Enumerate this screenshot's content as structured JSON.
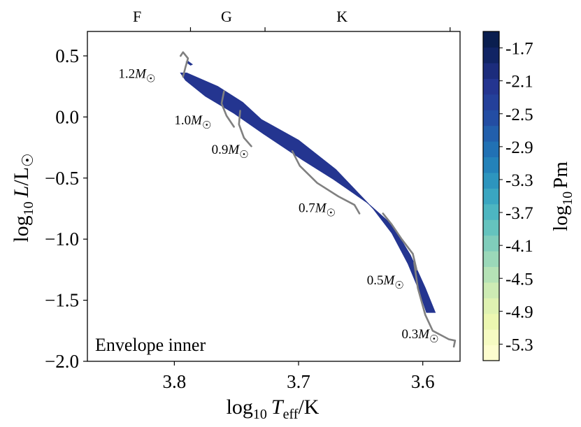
{
  "chart_data": {
    "type": "heatmap",
    "panel_label": "Envelope inner",
    "xlabel": {
      "base": "log",
      "sub": "10",
      "var": "T",
      "varsub": "eff",
      "unit": "/K"
    },
    "ylabel": {
      "base": "log",
      "sub": "10",
      "var": "L",
      "unit": "/L",
      "sun": "☉"
    },
    "x_axis": {
      "range": [
        3.87,
        3.57
      ],
      "inverted": true,
      "ticks": [
        3.8,
        3.7,
        3.6
      ],
      "tick_labels": [
        "3.8",
        "3.7",
        "3.6"
      ]
    },
    "y_axis": {
      "range": [
        -2.0,
        0.7
      ],
      "ticks": [
        0.5,
        0.0,
        -0.5,
        -1.0,
        -1.5,
        -2.0
      ],
      "tick_labels": [
        "0.5",
        "0.0",
        "−0.5",
        "−1.0",
        "−1.5",
        "−2.0"
      ]
    },
    "spectral_classes": [
      {
        "label": "F",
        "teff_center": 3.83
      },
      {
        "label": "G",
        "teff_center": 3.758
      },
      {
        "label": "K",
        "teff_center": 3.665
      }
    ],
    "spectral_boundaries": [
      3.787,
      3.727,
      3.578
    ],
    "colorbar": {
      "label": {
        "base": "log",
        "sub": "10",
        "var": "Pm"
      },
      "range": [
        -5.5,
        -1.5
      ],
      "ticks": [
        -1.7,
        -2.1,
        -2.5,
        -2.9,
        -3.3,
        -3.7,
        -4.1,
        -4.5,
        -4.9,
        -5.3
      ],
      "tick_labels": [
        "-1.7",
        "-2.1",
        "-2.5",
        "-2.9",
        "-3.3",
        "-3.7",
        "-4.1",
        "-4.5",
        "-4.9",
        "-5.3"
      ],
      "colors": [
        "#fdfdce",
        "#f6fbc2",
        "#ecf7b1",
        "#dff2b2",
        "#cdebb4",
        "#b5e2b6",
        "#9bd8b9",
        "#80cdbb",
        "#65c3be",
        "#4db6c1",
        "#3aa6c1",
        "#2d95be",
        "#2482b9",
        "#2171b4",
        "#225fac",
        "#234da3",
        "#24409a",
        "#243590",
        "#1c2c7c",
        "#112464",
        "#0a1e4f"
      ]
    },
    "region": {
      "description": "filled band of log10 Pm over HR diagram",
      "fill_value": -2.2,
      "outline": [
        [
          3.795,
          0.36
        ],
        [
          3.79,
          0.36
        ],
        [
          3.765,
          0.25
        ],
        [
          3.745,
          0.12
        ],
        [
          3.73,
          -0.02
        ],
        [
          3.7,
          -0.19
        ],
        [
          3.67,
          -0.43
        ],
        [
          3.64,
          -0.75
        ],
        [
          3.625,
          -0.95
        ],
        [
          3.612,
          -1.2
        ],
        [
          3.603,
          -1.42
        ],
        [
          3.597,
          -1.6
        ],
        [
          3.59,
          -1.6
        ],
        [
          3.598,
          -1.4
        ],
        [
          3.61,
          -1.13
        ],
        [
          3.625,
          -0.88
        ],
        [
          3.645,
          -0.7
        ],
        [
          3.672,
          -0.51
        ],
        [
          3.697,
          -0.35
        ],
        [
          3.728,
          -0.14
        ],
        [
          3.752,
          0.03
        ],
        [
          3.775,
          0.17
        ],
        [
          3.791,
          0.3
        ]
      ],
      "detached_blob": [
        [
          3.789,
          0.46
        ],
        [
          3.785,
          0.43
        ],
        [
          3.787,
          0.42
        ],
        [
          3.791,
          0.45
        ]
      ]
    },
    "tracks": [
      {
        "mass_label": "1.2",
        "points": [
          [
            3.795,
            0.5
          ],
          [
            3.793,
            0.53
          ],
          [
            3.789,
            0.48
          ],
          [
            3.791,
            0.41
          ],
          [
            3.793,
            0.33
          ]
        ]
      },
      {
        "mass_label": "1.0",
        "points": [
          [
            3.76,
            0.21
          ],
          [
            3.762,
            0.11
          ],
          [
            3.758,
            0.01
          ],
          [
            3.752,
            -0.08
          ]
        ]
      },
      {
        "mass_label": "0.9",
        "points": [
          [
            3.747,
            0.05
          ],
          [
            3.748,
            -0.06
          ],
          [
            3.744,
            -0.17
          ],
          [
            3.738,
            -0.24
          ]
        ]
      },
      {
        "mass_label": "0.7",
        "points": [
          [
            3.705,
            -0.28
          ],
          [
            3.699,
            -0.4
          ],
          [
            3.685,
            -0.54
          ],
          [
            3.668,
            -0.65
          ],
          [
            3.655,
            -0.72
          ],
          [
            3.651,
            -0.79
          ]
        ]
      },
      {
        "mass_label": "0.5",
        "points": [
          [
            3.632,
            -0.79
          ],
          [
            3.625,
            -0.88
          ],
          [
            3.617,
            -1.0
          ],
          [
            3.608,
            -1.12
          ],
          [
            3.605,
            -1.25
          ]
        ]
      },
      {
        "mass_label": "0.3",
        "points": [
          [
            3.607,
            -1.19
          ],
          [
            3.604,
            -1.4
          ],
          [
            3.598,
            -1.62
          ],
          [
            3.592,
            -1.75
          ],
          [
            3.579,
            -1.82
          ],
          [
            3.574,
            -1.83
          ],
          [
            3.575,
            -1.88
          ]
        ]
      }
    ],
    "track_labels": [
      {
        "mass": "1.2",
        "sym": "M",
        "sun": "☉",
        "at": [
          3.845,
          0.32
        ]
      },
      {
        "mass": "1.0",
        "sym": "M",
        "sun": "☉",
        "at": [
          3.8,
          -0.06
        ]
      },
      {
        "mass": "0.9",
        "sym": "M",
        "sun": "☉",
        "at": [
          3.77,
          -0.3
        ]
      },
      {
        "mass": "0.7",
        "sym": "M",
        "sun": "☉",
        "at": [
          3.7,
          -0.78
        ]
      },
      {
        "mass": "0.5",
        "sym": "M",
        "sun": "☉",
        "at": [
          3.645,
          -1.37
        ]
      },
      {
        "mass": "0.3",
        "sym": "M",
        "sun": "☉",
        "at": [
          3.617,
          -1.81
        ]
      }
    ]
  }
}
